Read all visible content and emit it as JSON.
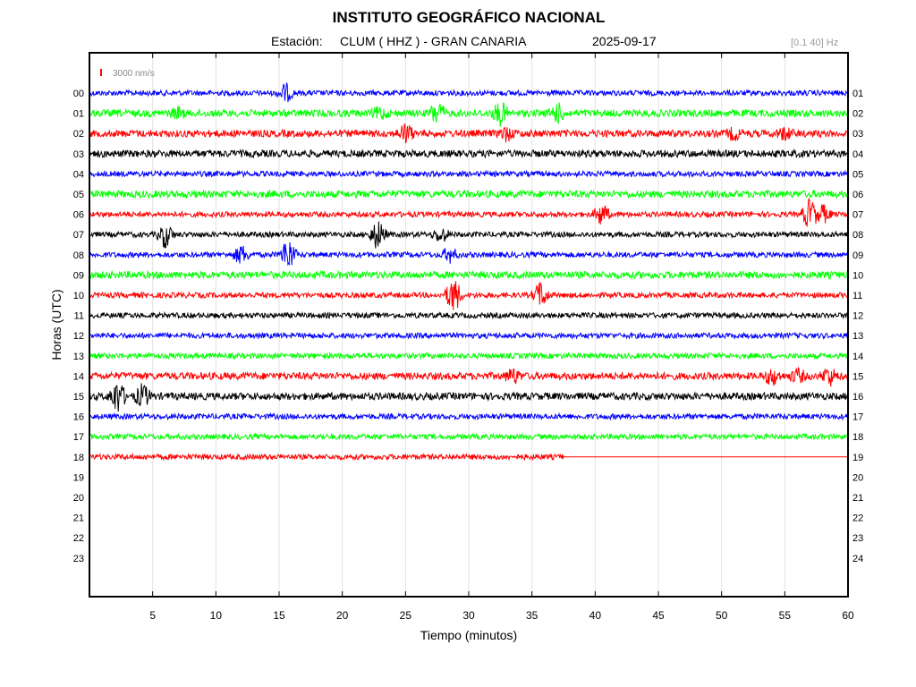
{
  "header": {
    "title": "INSTITUTO GEOGRÁFICO NACIONAL",
    "station_label": "Estación:",
    "station": "CLUM ( HHZ ) - GRAN CANARIA",
    "date": "2025-09-17",
    "filter": "[0.1 40] Hz"
  },
  "chart_data": {
    "type": "line",
    "title": "INSTITUTO GEOGRÁFICO NACIONAL",
    "xlabel": "Tiempo (minutos)",
    "ylabel": "Horas (UTC)",
    "xlim": [
      0,
      60
    ],
    "x_ticks": [
      "5",
      "10",
      "15",
      "20",
      "25",
      "30",
      "35",
      "40",
      "45",
      "50",
      "55",
      "60"
    ],
    "x_tick_values": [
      5,
      10,
      15,
      20,
      25,
      30,
      35,
      40,
      45,
      50,
      55,
      60
    ],
    "grid": "vertical",
    "scale_label": "3000 nm/s",
    "scale_color": "#ff0000",
    "series_colors": [
      "#0000ff",
      "#00ff00",
      "#ff0000",
      "#000000"
    ],
    "left_hours": [
      "00",
      "01",
      "02",
      "03",
      "04",
      "05",
      "06",
      "07",
      "08",
      "09",
      "10",
      "11",
      "12",
      "13",
      "14",
      "15",
      "16",
      "17",
      "18",
      "19",
      "20",
      "21",
      "22",
      "23"
    ],
    "right_hours": [
      "01",
      "02",
      "03",
      "04",
      "05",
      "06",
      "07",
      "08",
      "09",
      "10",
      "11",
      "12",
      "13",
      "14",
      "15",
      "16",
      "17",
      "18",
      "19",
      "20",
      "21",
      "22",
      "23",
      "24"
    ],
    "traces": [
      {
        "hour": "00",
        "color": "#0000ff",
        "end_min": 60,
        "amplitude": 3,
        "events": [
          [
            15.5,
            10
          ]
        ]
      },
      {
        "hour": "01",
        "color": "#00ff00",
        "end_min": 60,
        "amplitude": 4,
        "events": [
          [
            27.5,
            12
          ],
          [
            32.5,
            12
          ],
          [
            37,
            10
          ],
          [
            23,
            6
          ],
          [
            7,
            5
          ]
        ]
      },
      {
        "hour": "02",
        "color": "#ff0000",
        "end_min": 60,
        "amplitude": 4,
        "events": [
          [
            25,
            10
          ],
          [
            33,
            7
          ],
          [
            55,
            6
          ],
          [
            51,
            6
          ]
        ]
      },
      {
        "hour": "03",
        "color": "#000000",
        "end_min": 60,
        "amplitude": 4,
        "events": []
      },
      {
        "hour": "04",
        "color": "#0000ff",
        "end_min": 60,
        "amplitude": 3,
        "events": []
      },
      {
        "hour": "05",
        "color": "#00ff00",
        "end_min": 60,
        "amplitude": 4,
        "events": []
      },
      {
        "hour": "06",
        "color": "#ff0000",
        "end_min": 60,
        "amplitude": 3,
        "events": [
          [
            40.5,
            12
          ],
          [
            57,
            18
          ],
          [
            58,
            10
          ]
        ]
      },
      {
        "hour": "07",
        "color": "#000000",
        "end_min": 60,
        "amplitude": 3,
        "events": [
          [
            6,
            14
          ],
          [
            22.8,
            16
          ],
          [
            27.8,
            8
          ]
        ]
      },
      {
        "hour": "08",
        "color": "#0000ff",
        "end_min": 60,
        "amplitude": 3,
        "events": [
          [
            12,
            10
          ],
          [
            15.7,
            18
          ],
          [
            28.5,
            8
          ]
        ]
      },
      {
        "hour": "09",
        "color": "#00ff00",
        "end_min": 60,
        "amplitude": 4,
        "events": []
      },
      {
        "hour": "10",
        "color": "#ff0000",
        "end_min": 60,
        "amplitude": 3,
        "events": [
          [
            28.8,
            20
          ],
          [
            35.7,
            14
          ]
        ]
      },
      {
        "hour": "11",
        "color": "#000000",
        "end_min": 60,
        "amplitude": 3,
        "events": []
      },
      {
        "hour": "12",
        "color": "#0000ff",
        "end_min": 60,
        "amplitude": 3,
        "events": []
      },
      {
        "hour": "13",
        "color": "#00ff00",
        "end_min": 60,
        "amplitude": 3,
        "events": []
      },
      {
        "hour": "14",
        "color": "#ff0000",
        "end_min": 60,
        "amplitude": 4,
        "events": [
          [
            33.5,
            8
          ],
          [
            54,
            9
          ],
          [
            58.5,
            10
          ],
          [
            56,
            7
          ]
        ]
      },
      {
        "hour": "15",
        "color": "#000000",
        "end_min": 60,
        "amplitude": 4,
        "events": [
          [
            2.2,
            18
          ],
          [
            4.2,
            12
          ]
        ]
      },
      {
        "hour": "16",
        "color": "#0000ff",
        "end_min": 60,
        "amplitude": 3,
        "events": []
      },
      {
        "hour": "17",
        "color": "#00ff00",
        "end_min": 60,
        "amplitude": 3,
        "events": []
      },
      {
        "hour": "18",
        "color": "#ff0000",
        "end_min": 37.5,
        "amplitude": 3,
        "events": []
      }
    ]
  }
}
